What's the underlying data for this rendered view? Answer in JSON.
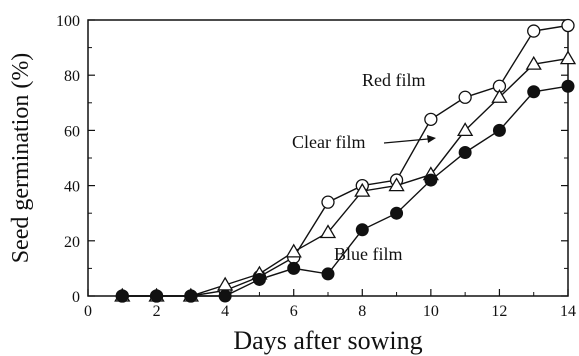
{
  "chart_data": {
    "type": "line",
    "xlabel": "Days after sowing",
    "ylabel": "Seed germination (%)",
    "xlim": [
      0,
      14
    ],
    "ylim": [
      0,
      100
    ],
    "xticks": [
      0,
      2,
      4,
      6,
      8,
      10,
      12,
      14
    ],
    "yticks": [
      0,
      20,
      40,
      60,
      80,
      100
    ],
    "grid": false,
    "legend": "none",
    "x": [
      1,
      2,
      3,
      4,
      5,
      6,
      7,
      8,
      9,
      10,
      11,
      12,
      13,
      14
    ],
    "series": [
      {
        "name": "Red film",
        "marker": "open-circle",
        "values": [
          0,
          0,
          0,
          2,
          7,
          14,
          34,
          40,
          42,
          64,
          72,
          76,
          96,
          98
        ]
      },
      {
        "name": "Clear film",
        "marker": "open-triangle",
        "values": [
          0,
          0,
          0,
          4,
          8,
          16,
          23,
          38,
          40,
          44,
          60,
          72,
          84,
          86
        ]
      },
      {
        "name": "Blue film",
        "marker": "filled-circle",
        "values": [
          0,
          0,
          0,
          0,
          6,
          10,
          8,
          24,
          30,
          42,
          52,
          60,
          74,
          76
        ]
      }
    ],
    "annotations": [
      "Red film",
      "Clear film",
      "Blue film"
    ]
  }
}
